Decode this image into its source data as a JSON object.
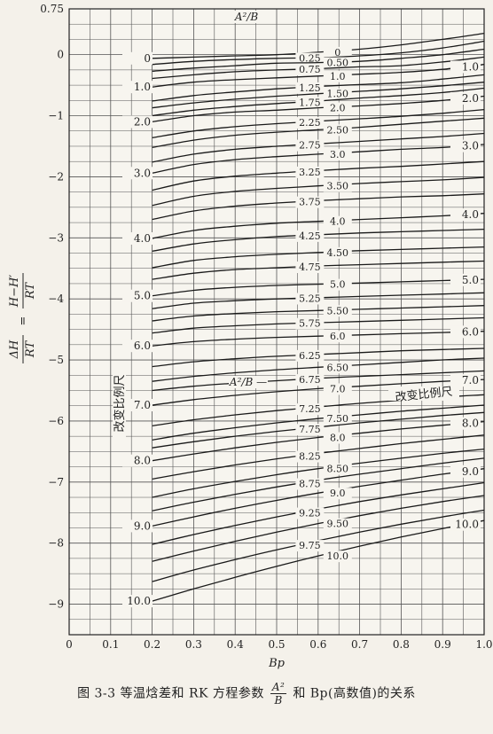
{
  "chart_data": {
    "type": "line",
    "x": [
      0.2,
      0.3,
      0.4,
      0.5,
      0.6,
      0.7,
      0.8,
      0.9,
      1.0
    ],
    "xlabel": "Bp",
    "ylabel_num": "ΔH",
    "ylabel_den": "RT",
    "ylabel_eq": "=",
    "ylabel_num2": "H−H′",
    "ylabel_den2": "RT",
    "x_ticks": [
      "0",
      "0.1",
      "0.2",
      "0.3",
      "0.4",
      "0.5",
      "0.6",
      "0.7",
      "0.8",
      "0.9",
      "1.0"
    ],
    "y_ticks": [
      "0.75",
      "0",
      "−1",
      "−2",
      "−3",
      "−4",
      "−5",
      "−6",
      "−7",
      "−8",
      "−9"
    ],
    "y_tick_values": [
      0.75,
      0,
      -1,
      -2,
      -3,
      -4,
      -5,
      -6,
      -7,
      -8,
      -9
    ],
    "xlim": [
      0,
      1.0
    ],
    "ylim": [
      -9.5,
      0.75
    ],
    "grid": true,
    "param_label": "A²/B",
    "scale_change_label": "改变比例尺",
    "left_scale_labels": [
      "0",
      "1.0",
      "2.0",
      "3.0",
      "4.0",
      "5.0",
      "6.0",
      "7.0",
      "8.0",
      "9.0",
      "10.0"
    ],
    "right_scale_labels": [
      "1.0",
      "2.0",
      "3.0",
      "4.0",
      "5.0",
      "6.0",
      "7.0",
      "8.0",
      "9.0",
      "10.0"
    ],
    "series": [
      {
        "name": "0",
        "values": [
          -0.06,
          -0.04,
          -0.02,
          0.0,
          0.04,
          0.09,
          0.16,
          0.25,
          0.35
        ]
      },
      {
        "name": "0.25",
        "values": [
          -0.16,
          -0.11,
          -0.08,
          -0.06,
          -0.05,
          -0.02,
          0.03,
          0.11,
          0.22
        ]
      },
      {
        "name": "0.50",
        "values": [
          -0.27,
          -0.22,
          -0.18,
          -0.14,
          -0.13,
          -0.11,
          -0.06,
          0.0,
          0.09
        ]
      },
      {
        "name": "0.75",
        "values": [
          -0.39,
          -0.33,
          -0.28,
          -0.25,
          -0.23,
          -0.2,
          -0.18,
          -0.12,
          -0.04
        ]
      },
      {
        "name": "1.0",
        "values": [
          -0.53,
          -0.45,
          -0.41,
          -0.38,
          -0.35,
          -0.32,
          -0.29,
          -0.24,
          -0.16
        ]
      },
      {
        "name": "1.25",
        "values": [
          -0.76,
          -0.67,
          -0.61,
          -0.56,
          -0.52,
          -0.49,
          -0.46,
          -0.4,
          -0.33
        ]
      },
      {
        "name": "1.50",
        "values": [
          -0.87,
          -0.79,
          -0.73,
          -0.68,
          -0.64,
          -0.6,
          -0.56,
          -0.51,
          -0.45
        ]
      },
      {
        "name": "1.75",
        "values": [
          -1.0,
          -0.91,
          -0.85,
          -0.8,
          -0.76,
          -0.71,
          -0.67,
          -0.62,
          -0.55
        ]
      },
      {
        "name": "2.0",
        "values": [
          -1.1,
          -1.0,
          -0.94,
          -0.91,
          -0.87,
          -0.84,
          -0.8,
          -0.75,
          -0.68
        ]
      },
      {
        "name": "2.25",
        "values": [
          -1.36,
          -1.25,
          -1.18,
          -1.13,
          -1.09,
          -1.05,
          -1.01,
          -0.96,
          -0.9
        ]
      },
      {
        "name": "2.50",
        "values": [
          -1.52,
          -1.4,
          -1.32,
          -1.27,
          -1.23,
          -1.19,
          -1.14,
          -1.09,
          -1.04
        ]
      },
      {
        "name": "2.75",
        "values": [
          -1.76,
          -1.63,
          -1.55,
          -1.5,
          -1.46,
          -1.42,
          -1.38,
          -1.34,
          -1.29
        ]
      },
      {
        "name": "3.0",
        "values": [
          -1.94,
          -1.8,
          -1.72,
          -1.67,
          -1.63,
          -1.59,
          -1.55,
          -1.52,
          -1.47
        ]
      },
      {
        "name": "3.25",
        "values": [
          -2.22,
          -2.07,
          -1.99,
          -1.94,
          -1.9,
          -1.86,
          -1.83,
          -1.79,
          -1.75
        ]
      },
      {
        "name": "3.50",
        "values": [
          -2.47,
          -2.32,
          -2.24,
          -2.19,
          -2.15,
          -2.11,
          -2.08,
          -2.05,
          -2.01
        ]
      },
      {
        "name": "3.75",
        "values": [
          -2.7,
          -2.56,
          -2.48,
          -2.43,
          -2.39,
          -2.36,
          -2.33,
          -2.31,
          -2.28
        ]
      },
      {
        "name": "4.0",
        "values": [
          -3.01,
          -2.88,
          -2.81,
          -2.76,
          -2.73,
          -2.7,
          -2.67,
          -2.64,
          -2.6
        ]
      },
      {
        "name": "4.25",
        "values": [
          -3.22,
          -3.1,
          -3.03,
          -2.98,
          -2.95,
          -2.92,
          -2.9,
          -2.88,
          -2.86
        ]
      },
      {
        "name": "4.50",
        "values": [
          -3.49,
          -3.37,
          -3.31,
          -3.27,
          -3.24,
          -3.21,
          -3.19,
          -3.17,
          -3.15
        ]
      },
      {
        "name": "4.75",
        "values": [
          -3.68,
          -3.58,
          -3.52,
          -3.49,
          -3.46,
          -3.44,
          -3.42,
          -3.4,
          -3.38
        ]
      },
      {
        "name": "5.0",
        "values": [
          -3.95,
          -3.86,
          -3.81,
          -3.78,
          -3.76,
          -3.74,
          -3.72,
          -3.7,
          -3.68
        ]
      },
      {
        "name": "5.25",
        "values": [
          -4.16,
          -4.07,
          -4.03,
          -4.0,
          -3.98,
          -3.96,
          -3.94,
          -3.92,
          -3.9
        ]
      },
      {
        "name": "5.50",
        "values": [
          -4.36,
          -4.28,
          -4.24,
          -4.21,
          -4.19,
          -4.17,
          -4.15,
          -4.13,
          -4.11
        ]
      },
      {
        "name": "5.75",
        "values": [
          -4.56,
          -4.48,
          -4.44,
          -4.41,
          -4.39,
          -4.37,
          -4.35,
          -4.33,
          -4.31
        ]
      },
      {
        "name": "6.0",
        "values": [
          -4.77,
          -4.7,
          -4.66,
          -4.63,
          -4.61,
          -4.59,
          -4.57,
          -4.55,
          -4.53
        ]
      },
      {
        "name": "6.25",
        "values": [
          -5.11,
          -5.03,
          -4.98,
          -4.94,
          -4.91,
          -4.88,
          -4.85,
          -4.83,
          -4.81
        ]
      },
      {
        "name": "6.50",
        "values": [
          -5.35,
          -5.27,
          -5.21,
          -5.16,
          -5.12,
          -5.08,
          -5.04,
          -5.0,
          -4.97
        ]
      },
      {
        "name": "6.75",
        "values": [
          -5.5,
          -5.43,
          -5.38,
          -5.34,
          -5.3,
          -5.27,
          -5.24,
          -5.21,
          -5.18
        ]
      },
      {
        "name": "7.0",
        "values": [
          -5.74,
          -5.65,
          -5.58,
          -5.52,
          -5.47,
          -5.43,
          -5.39,
          -5.35,
          -5.32
        ]
      },
      {
        "name": "7.25",
        "values": [
          -6.08,
          -5.98,
          -5.9,
          -5.83,
          -5.77,
          -5.71,
          -5.66,
          -5.61,
          -5.57
        ]
      },
      {
        "name": "7.50",
        "values": [
          -6.31,
          -6.2,
          -6.11,
          -6.03,
          -5.96,
          -5.9,
          -5.84,
          -5.79,
          -5.74
        ]
      },
      {
        "name": "7.75",
        "values": [
          -6.44,
          -6.34,
          -6.25,
          -6.17,
          -6.1,
          -6.03,
          -5.97,
          -5.91,
          -5.86
        ]
      },
      {
        "name": "8.0",
        "values": [
          -6.65,
          -6.54,
          -6.44,
          -6.35,
          -6.27,
          -6.2,
          -6.13,
          -6.07,
          -6.01
        ]
      },
      {
        "name": "8.25",
        "values": [
          -6.95,
          -6.83,
          -6.72,
          -6.62,
          -6.53,
          -6.45,
          -6.37,
          -6.3,
          -6.23
        ]
      },
      {
        "name": "8.50",
        "values": [
          -7.25,
          -7.11,
          -6.99,
          -6.88,
          -6.78,
          -6.69,
          -6.61,
          -6.53,
          -6.46
        ]
      },
      {
        "name": "8.75",
        "values": [
          -7.47,
          -7.33,
          -7.2,
          -7.08,
          -6.97,
          -6.87,
          -6.78,
          -6.69,
          -6.61
        ]
      },
      {
        "name": "9.0",
        "values": [
          -7.72,
          -7.57,
          -7.43,
          -7.3,
          -7.18,
          -7.07,
          -6.97,
          -6.87,
          -6.78
        ]
      },
      {
        "name": "9.25",
        "values": [
          -8.02,
          -7.86,
          -7.71,
          -7.57,
          -7.44,
          -7.32,
          -7.21,
          -7.11,
          -7.01
        ]
      },
      {
        "name": "9.50",
        "values": [
          -8.3,
          -8.13,
          -7.97,
          -7.82,
          -7.68,
          -7.55,
          -7.43,
          -7.32,
          -7.22
        ]
      },
      {
        "name": "9.75",
        "values": [
          -8.63,
          -8.44,
          -8.27,
          -8.11,
          -7.96,
          -7.82,
          -7.69,
          -7.57,
          -7.46
        ]
      },
      {
        "name": "10.0",
        "values": [
          -8.95,
          -8.75,
          -8.56,
          -8.38,
          -8.21,
          -8.05,
          -7.9,
          -7.76,
          -7.63
        ]
      }
    ],
    "curve_labels": [
      "0",
      "0.25",
      "0.50",
      "0.75",
      "1.0",
      "1.25",
      "1.50",
      "1.75",
      "2.0",
      "2.25",
      "2.50",
      "2.75",
      "3.0",
      "3.25",
      "3.50",
      "3.75",
      "4.0",
      "4.25",
      "4.50",
      "4.75",
      "5.0",
      "5.25",
      "5.50",
      "5.75",
      "6.0",
      "6.25",
      "6.50",
      "6.75",
      "7.0",
      "7.25",
      "7.50",
      "7.75",
      "8.0",
      "8.25",
      "8.50",
      "8.75",
      "9.0",
      "9.25",
      "9.50",
      "9.75",
      "10.0"
    ]
  },
  "caption": {
    "prefix": "图 3-3  等温焓差和 RK 方程参数",
    "frac_num": "A²",
    "frac_den": "B",
    "suffix": "和 Bp(高数值)的关系"
  }
}
